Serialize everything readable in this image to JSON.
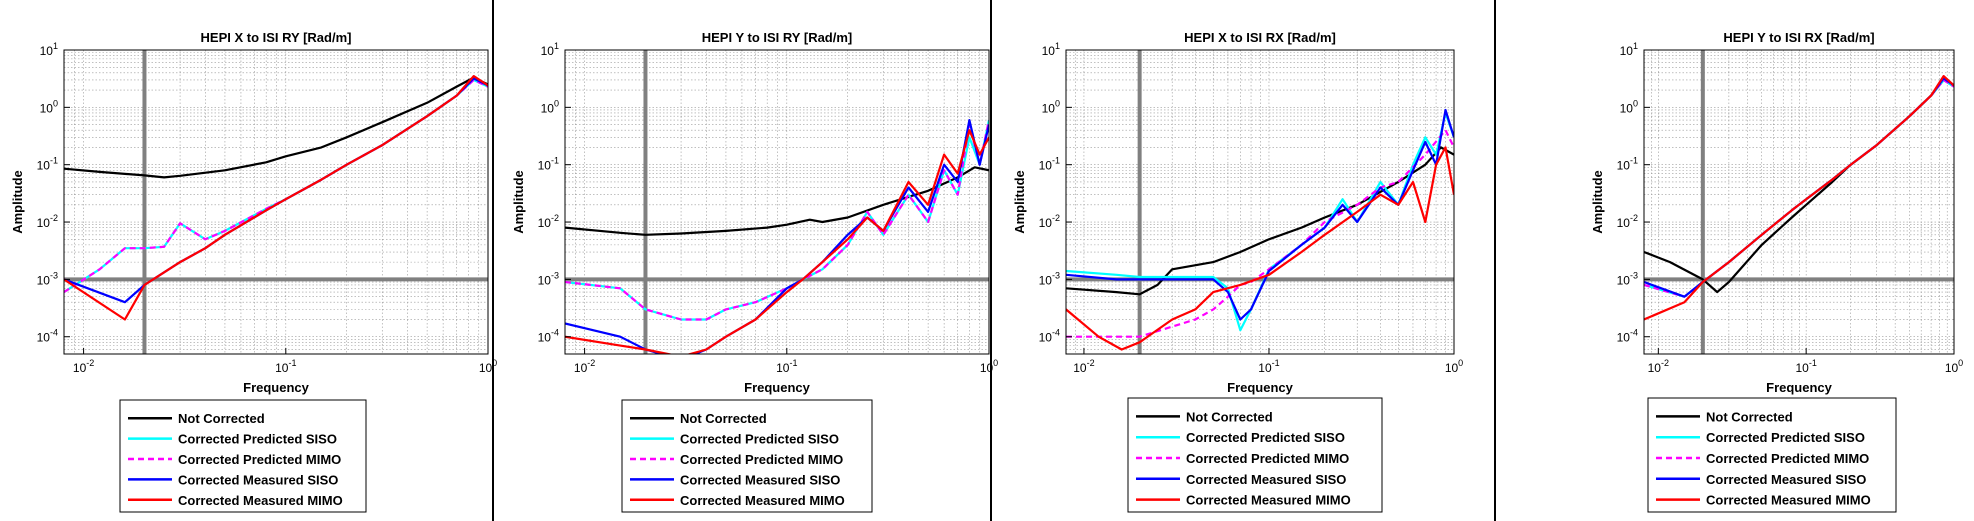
{
  "colors": {
    "not_corrected": "#000000",
    "corrected_predicted_siso": "#00ffff",
    "corrected_predicted_mimo": "#ff00ff",
    "corrected_measured_siso": "#0000ff",
    "corrected_measured_mimo": "#ff0000",
    "reference_lines": "#808080",
    "grid": "#9a9a9a",
    "panel_divider": "#000000"
  },
  "chart_data": [
    {
      "type": "line",
      "title": "HEPI X to ISI RY [Rad/m]",
      "xlabel": "Frequency",
      "ylabel": "Amplitude",
      "xscale": "log",
      "yscale": "log",
      "xlim": [
        0.008,
        1
      ],
      "ylim": [
        5e-05,
        10
      ],
      "grid": true,
      "legend_position": "below",
      "x_tick_labels": [
        "10-2",
        "10-1",
        "100"
      ],
      "y_tick_labels": [
        "10-4",
        "10-3",
        "10-2",
        "10-1",
        "100",
        "101"
      ],
      "reference_lines": {
        "x": 0.02,
        "y": 0.001
      },
      "series": [
        {
          "name": "Not Corrected",
          "style": "solid",
          "x": [
            0.008,
            0.012,
            0.02,
            0.025,
            0.03,
            0.05,
            0.08,
            0.1,
            0.15,
            0.2,
            0.3,
            0.5,
            0.7,
            0.85,
            1.0
          ],
          "y": [
            0.085,
            0.075,
            0.065,
            0.06,
            0.064,
            0.08,
            0.11,
            0.14,
            0.2,
            0.3,
            0.55,
            1.2,
            2.3,
            3.3,
            2.5
          ]
        },
        {
          "name": "Corrected Predicted SISO",
          "style": "solid",
          "x": [
            0.008,
            0.012,
            0.016,
            0.02,
            0.025,
            0.03,
            0.04,
            0.05,
            0.08,
            0.1,
            0.15,
            0.2,
            0.3,
            0.5,
            0.7,
            0.85,
            1.0
          ],
          "y": [
            0.0006,
            0.0015,
            0.0035,
            0.0035,
            0.0037,
            0.0095,
            0.005,
            0.007,
            0.017,
            0.025,
            0.055,
            0.1,
            0.22,
            0.7,
            1.6,
            3.0,
            2.3
          ]
        },
        {
          "name": "Corrected Predicted MIMO",
          "style": "dashed",
          "x": [
            0.008,
            0.012,
            0.016,
            0.02,
            0.025,
            0.03,
            0.04,
            0.05,
            0.08,
            0.1,
            0.15,
            0.2,
            0.3,
            0.5,
            0.7,
            0.85,
            1.0
          ],
          "y": [
            0.0006,
            0.0015,
            0.0035,
            0.0035,
            0.0037,
            0.0095,
            0.005,
            0.007,
            0.017,
            0.025,
            0.055,
            0.1,
            0.22,
            0.7,
            1.6,
            3.0,
            2.3
          ]
        },
        {
          "name": "Corrected Measured SISO",
          "style": "solid",
          "x": [
            0.008,
            0.016,
            0.02,
            0.03,
            0.04,
            0.05,
            0.08,
            0.1,
            0.15,
            0.2,
            0.3,
            0.5,
            0.7,
            0.85,
            1.0
          ],
          "y": [
            0.001,
            0.0004,
            0.0008,
            0.002,
            0.0035,
            0.006,
            0.016,
            0.025,
            0.055,
            0.1,
            0.22,
            0.7,
            1.6,
            3.2,
            2.4
          ]
        },
        {
          "name": "Corrected Measured MIMO",
          "style": "solid",
          "x": [
            0.008,
            0.016,
            0.02,
            0.03,
            0.04,
            0.05,
            0.08,
            0.1,
            0.15,
            0.2,
            0.3,
            0.5,
            0.7,
            0.85,
            1.0
          ],
          "y": [
            0.001,
            0.0002,
            0.0008,
            0.002,
            0.0035,
            0.006,
            0.016,
            0.025,
            0.055,
            0.1,
            0.22,
            0.7,
            1.6,
            3.5,
            2.4
          ]
        }
      ]
    },
    {
      "type": "line",
      "title": "HEPI Y to ISI RY [Rad/m]",
      "xlabel": "Frequency",
      "ylabel": "Amplitude",
      "xscale": "log",
      "yscale": "log",
      "xlim": [
        0.008,
        1
      ],
      "ylim": [
        5e-05,
        10
      ],
      "grid": true,
      "legend_position": "below",
      "x_tick_labels": [
        "10-2",
        "10-1",
        "100"
      ],
      "y_tick_labels": [
        "10-4",
        "10-3",
        "10-2",
        "10-1",
        "100",
        "101"
      ],
      "reference_lines": {
        "x": 0.02,
        "y": 0.001
      },
      "series": [
        {
          "name": "Not Corrected",
          "style": "solid",
          "x": [
            0.008,
            0.015,
            0.02,
            0.03,
            0.05,
            0.08,
            0.1,
            0.13,
            0.15,
            0.2,
            0.3,
            0.5,
            0.7,
            0.85,
            1.0
          ],
          "y": [
            0.008,
            0.0065,
            0.006,
            0.0063,
            0.007,
            0.008,
            0.009,
            0.011,
            0.01,
            0.012,
            0.02,
            0.035,
            0.06,
            0.09,
            0.08
          ]
        },
        {
          "name": "Corrected Predicted SISO",
          "style": "solid",
          "x": [
            0.008,
            0.015,
            0.02,
            0.03,
            0.04,
            0.05,
            0.07,
            0.1,
            0.12,
            0.15,
            0.2,
            0.25,
            0.3,
            0.4,
            0.5,
            0.6,
            0.7,
            0.8,
            0.9,
            1.0
          ],
          "y": [
            0.0009,
            0.0007,
            0.0003,
            0.0002,
            0.0002,
            0.0003,
            0.0004,
            0.0007,
            0.001,
            0.0015,
            0.004,
            0.015,
            0.006,
            0.03,
            0.01,
            0.08,
            0.03,
            0.3,
            0.1,
            0.6
          ]
        },
        {
          "name": "Corrected Predicted MIMO",
          "style": "dashed",
          "x": [
            0.008,
            0.015,
            0.02,
            0.03,
            0.04,
            0.05,
            0.07,
            0.1,
            0.12,
            0.15,
            0.2,
            0.25,
            0.3,
            0.4,
            0.5,
            0.6,
            0.7,
            0.8,
            0.9,
            1.0
          ],
          "y": [
            0.0009,
            0.0007,
            0.0003,
            0.0002,
            0.0002,
            0.0003,
            0.0004,
            0.0007,
            0.001,
            0.0015,
            0.004,
            0.015,
            0.006,
            0.03,
            0.01,
            0.08,
            0.03,
            0.5,
            0.1,
            0.6
          ]
        },
        {
          "name": "Corrected Measured SISO",
          "style": "solid",
          "x": [
            0.008,
            0.015,
            0.02,
            0.03,
            0.04,
            0.05,
            0.07,
            0.1,
            0.12,
            0.15,
            0.2,
            0.25,
            0.3,
            0.4,
            0.5,
            0.6,
            0.7,
            0.8,
            0.9,
            1.0
          ],
          "y": [
            0.00017,
            0.0001,
            6e-05,
            4e-05,
            6e-05,
            0.0001,
            0.0002,
            0.0007,
            0.001,
            0.002,
            0.006,
            0.012,
            0.007,
            0.04,
            0.015,
            0.1,
            0.05,
            0.6,
            0.1,
            0.5
          ]
        },
        {
          "name": "Corrected Measured MIMO",
          "style": "solid",
          "x": [
            0.008,
            0.015,
            0.02,
            0.03,
            0.04,
            0.05,
            0.07,
            0.1,
            0.12,
            0.15,
            0.2,
            0.25,
            0.3,
            0.4,
            0.5,
            0.6,
            0.7,
            0.8,
            0.9,
            1.0
          ],
          "y": [
            0.0001,
            7e-05,
            6e-05,
            4.5e-05,
            6e-05,
            0.0001,
            0.0002,
            0.0006,
            0.001,
            0.002,
            0.005,
            0.012,
            0.007,
            0.05,
            0.02,
            0.15,
            0.07,
            0.4,
            0.15,
            0.3
          ]
        }
      ]
    },
    {
      "type": "line",
      "title": "HEPI X to ISI RX [Rad/m]",
      "xlabel": "Frequency",
      "ylabel": "Amplitude",
      "xscale": "log",
      "yscale": "log",
      "xlim": [
        0.008,
        1
      ],
      "ylim": [
        5e-05,
        10
      ],
      "grid": true,
      "legend_position": "below",
      "x_tick_labels": [
        "10-2",
        "10-1",
        "100"
      ],
      "y_tick_labels": [
        "10-4",
        "10-3",
        "10-2",
        "10-1",
        "100",
        "101"
      ],
      "reference_lines": {
        "x": 0.02,
        "y": 0.001
      },
      "series": [
        {
          "name": "Not Corrected",
          "style": "solid",
          "x": [
            0.008,
            0.015,
            0.02,
            0.025,
            0.03,
            0.05,
            0.07,
            0.1,
            0.15,
            0.2,
            0.3,
            0.5,
            0.7,
            0.85,
            1.0
          ],
          "y": [
            0.0007,
            0.0006,
            0.00055,
            0.0008,
            0.0015,
            0.002,
            0.003,
            0.005,
            0.008,
            0.012,
            0.02,
            0.05,
            0.1,
            0.2,
            0.15
          ]
        },
        {
          "name": "Corrected Predicted SISO",
          "style": "solid",
          "x": [
            0.008,
            0.015,
            0.02,
            0.03,
            0.05,
            0.06,
            0.07,
            0.08,
            0.1,
            0.15,
            0.2,
            0.25,
            0.3,
            0.4,
            0.5,
            0.6,
            0.7,
            0.8,
            0.9,
            1.0
          ],
          "y": [
            0.0014,
            0.0012,
            0.0011,
            0.0011,
            0.0011,
            0.0007,
            0.00013,
            0.0003,
            0.0015,
            0.004,
            0.008,
            0.025,
            0.01,
            0.05,
            0.02,
            0.1,
            0.3,
            0.15,
            0.8,
            0.3
          ]
        },
        {
          "name": "Corrected Predicted MIMO",
          "style": "dashed",
          "x": [
            0.008,
            0.015,
            0.02,
            0.03,
            0.04,
            0.05,
            0.06,
            0.07,
            0.08,
            0.1,
            0.15,
            0.2,
            0.3,
            0.4,
            0.5,
            0.7,
            0.9,
            1.0
          ],
          "y": [
            0.0001,
            0.0001,
            0.0001,
            0.00015,
            0.0002,
            0.0003,
            0.0005,
            0.0008,
            0.0009,
            0.0015,
            0.004,
            0.01,
            0.02,
            0.04,
            0.05,
            0.15,
            0.4,
            0.2
          ]
        },
        {
          "name": "Corrected Measured SISO",
          "style": "solid",
          "x": [
            0.008,
            0.015,
            0.02,
            0.03,
            0.05,
            0.06,
            0.07,
            0.08,
            0.1,
            0.15,
            0.2,
            0.25,
            0.3,
            0.4,
            0.5,
            0.6,
            0.7,
            0.8,
            0.9,
            1.0
          ],
          "y": [
            0.0012,
            0.001,
            0.001,
            0.001,
            0.001,
            0.0006,
            0.0002,
            0.0003,
            0.0014,
            0.004,
            0.008,
            0.02,
            0.01,
            0.04,
            0.02,
            0.08,
            0.25,
            0.1,
            0.9,
            0.3
          ]
        },
        {
          "name": "Corrected Measured MIMO",
          "style": "solid",
          "x": [
            0.008,
            0.012,
            0.016,
            0.02,
            0.03,
            0.04,
            0.05,
            0.07,
            0.1,
            0.15,
            0.2,
            0.3,
            0.4,
            0.5,
            0.6,
            0.7,
            0.8,
            0.9,
            1.0
          ],
          "y": [
            0.0003,
            0.0001,
            6e-05,
            8e-05,
            0.0002,
            0.0003,
            0.0006,
            0.0008,
            0.0012,
            0.003,
            0.006,
            0.015,
            0.03,
            0.02,
            0.05,
            0.01,
            0.1,
            0.2,
            0.03
          ]
        }
      ]
    },
    {
      "type": "line",
      "title": "HEPI Y to ISI RX [Rad/m]",
      "xlabel": "Frequency",
      "ylabel": "Amplitude",
      "xscale": "log",
      "yscale": "log",
      "xlim": [
        0.008,
        1
      ],
      "ylim": [
        5e-05,
        10
      ],
      "grid": true,
      "legend_position": "below",
      "x_tick_labels": [
        "10-2",
        "10-1",
        "100"
      ],
      "y_tick_labels": [
        "10-4",
        "10-3",
        "10-2",
        "10-1",
        "100",
        "101"
      ],
      "reference_lines": {
        "x": 0.02,
        "y": 0.001
      },
      "series": [
        {
          "name": "Not Corrected",
          "style": "solid",
          "x": [
            0.008,
            0.012,
            0.02,
            0.025,
            0.03,
            0.05,
            0.08,
            0.1,
            0.15,
            0.2,
            0.3,
            0.5,
            0.7,
            0.85,
            1.0
          ],
          "y": [
            0.003,
            0.002,
            0.001,
            0.0006,
            0.0009,
            0.004,
            0.012,
            0.02,
            0.05,
            0.1,
            0.22,
            0.7,
            1.6,
            3.0,
            2.3
          ]
        },
        {
          "name": "Corrected Predicted SISO",
          "style": "solid",
          "x": [
            0.008,
            0.015,
            0.02,
            0.03,
            0.05,
            0.08,
            0.1,
            0.15,
            0.2,
            0.3,
            0.5,
            0.7,
            0.85,
            1.0
          ],
          "y": [
            0.0008,
            0.0005,
            0.0009,
            0.002,
            0.006,
            0.016,
            0.025,
            0.055,
            0.1,
            0.22,
            0.7,
            1.6,
            3.0,
            2.3
          ]
        },
        {
          "name": "Corrected Predicted MIMO",
          "style": "dashed",
          "x": [
            0.008,
            0.015,
            0.02,
            0.03,
            0.05,
            0.08,
            0.1,
            0.15,
            0.2,
            0.3,
            0.5,
            0.7,
            0.85,
            1.0
          ],
          "y": [
            0.0008,
            0.0005,
            0.0009,
            0.002,
            0.006,
            0.016,
            0.025,
            0.055,
            0.1,
            0.22,
            0.7,
            1.6,
            3.0,
            2.3
          ]
        },
        {
          "name": "Corrected Measured SISO",
          "style": "solid",
          "x": [
            0.008,
            0.015,
            0.02,
            0.03,
            0.05,
            0.08,
            0.1,
            0.15,
            0.2,
            0.3,
            0.5,
            0.7,
            0.85,
            1.0
          ],
          "y": [
            0.0009,
            0.0005,
            0.0009,
            0.002,
            0.006,
            0.016,
            0.025,
            0.055,
            0.1,
            0.22,
            0.7,
            1.6,
            3.2,
            2.4
          ]
        },
        {
          "name": "Corrected Measured MIMO",
          "style": "solid",
          "x": [
            0.008,
            0.015,
            0.02,
            0.03,
            0.05,
            0.08,
            0.1,
            0.15,
            0.2,
            0.3,
            0.5,
            0.7,
            0.85,
            1.0
          ],
          "y": [
            0.0002,
            0.0004,
            0.0009,
            0.002,
            0.006,
            0.016,
            0.025,
            0.055,
            0.1,
            0.22,
            0.7,
            1.6,
            3.5,
            2.4
          ]
        }
      ]
    }
  ]
}
